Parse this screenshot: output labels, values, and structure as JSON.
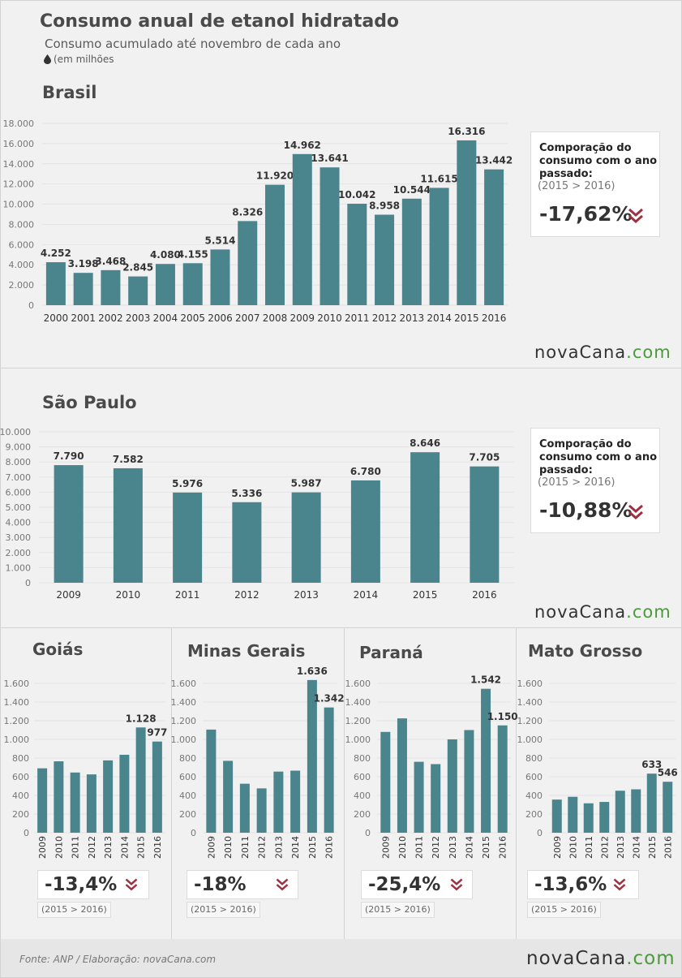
{
  "header": {
    "title": "Consumo anual de etanol hidratado",
    "subtitle": "Consumo acumulado até novembro de cada ano",
    "unit": "(em milhões"
  },
  "brand": {
    "logo_main": "novaCana",
    "logo_suffix": ".com",
    "accent": "#4b9a3c"
  },
  "colors": {
    "bar": "#4a848d",
    "grid": "#e4e4e4",
    "arrow": "#a03040"
  },
  "footer": {
    "source": "Fonte: ANP  / Elaboração: novaCana.com"
  },
  "comparison_title": "Comporação do consumo com o ano passado:",
  "brasil": {
    "name": "Brasil",
    "period": "(2015 > 2016)",
    "change": "-17,62%"
  },
  "sao_paulo": {
    "name": "São Paulo",
    "period": "(2015 > 2016)",
    "change": "-10,88%"
  },
  "goias": {
    "name": "Goiás",
    "period": "(2015 > 2016)",
    "change": "-13,4%"
  },
  "minas": {
    "name": "Minas Gerais",
    "period": "(2015 > 2016)",
    "change": "-18%"
  },
  "parana": {
    "name": "Paraná",
    "period": "(2015 > 2016)",
    "change": "-25,4%"
  },
  "mato_grosso": {
    "name": "Mato Grosso",
    "period": "(2015 > 2016)",
    "change": "-13,6%"
  },
  "chart_data": [
    {
      "id": "brasil",
      "type": "bar",
      "categories": [
        "2000",
        "2001",
        "2002",
        "2003",
        "2004",
        "2005",
        "2006",
        "2007",
        "2008",
        "2009",
        "2010",
        "2011",
        "2012",
        "2013",
        "2014",
        "2015",
        "2016"
      ],
      "values": [
        4252,
        3198,
        3468,
        2845,
        4080,
        4155,
        5514,
        8326,
        11920,
        14962,
        13641,
        10042,
        8958,
        10544,
        11615,
        16316,
        13442
      ],
      "labels": [
        "4.252",
        "3.198",
        "3.468",
        "2.845",
        "4.080",
        "4.155",
        "5.514",
        "8.326",
        "11.920",
        "14.962",
        "13.641",
        "10.042",
        "8.958",
        "10.544",
        "11.615",
        "16.316",
        "13.442"
      ],
      "ylim": [
        0,
        18000
      ],
      "yticks": [
        0,
        2000,
        4000,
        6000,
        8000,
        10000,
        12000,
        14000,
        16000,
        18000
      ],
      "ytick_labels": [
        "0",
        "2.000",
        "4.000",
        "6.000",
        "8.000",
        "10.000",
        "12.000",
        "14.000",
        "16.000",
        "18.000"
      ],
      "grid": true
    },
    {
      "id": "sao_paulo",
      "type": "bar",
      "categories": [
        "2009",
        "2010",
        "2011",
        "2012",
        "2013",
        "2014",
        "2015",
        "2016"
      ],
      "values": [
        7790,
        7582,
        5976,
        5336,
        5987,
        6780,
        8646,
        7705
      ],
      "labels": [
        "7.790",
        "7.582",
        "5.976",
        "5.336",
        "5.987",
        "6.780",
        "8.646",
        "7.705"
      ],
      "ylim": [
        0,
        10000
      ],
      "yticks": [
        0,
        1000,
        2000,
        3000,
        4000,
        5000,
        6000,
        7000,
        8000,
        9000,
        10000
      ],
      "ytick_labels": [
        "0",
        "1.000",
        "2.000",
        "3.000",
        "4.000",
        "5.000",
        "6.000",
        "7.000",
        "8.000",
        "9.000",
        "10.000"
      ],
      "grid": true
    },
    {
      "id": "goias",
      "type": "bar",
      "categories": [
        "2009",
        "2010",
        "2011",
        "2012",
        "2013",
        "2014",
        "2015",
        "2016"
      ],
      "values": [
        690,
        765,
        645,
        625,
        775,
        835,
        1128,
        977
      ],
      "labels": [
        "",
        "",
        "",
        "",
        "",
        "",
        "1.128",
        "977"
      ],
      "ylim": [
        0,
        1600
      ],
      "yticks": [
        0,
        200,
        400,
        600,
        800,
        1000,
        1200,
        1400,
        1600
      ],
      "ytick_labels": [
        "0",
        "200",
        "400",
        "600",
        "800",
        "1.000",
        "1.200",
        "1.400",
        "1.600"
      ],
      "grid": true
    },
    {
      "id": "minas",
      "type": "bar",
      "categories": [
        "2009",
        "2010",
        "2011",
        "2012",
        "2013",
        "2014",
        "2015",
        "2016"
      ],
      "values": [
        1105,
        770,
        525,
        475,
        655,
        665,
        1636,
        1342
      ],
      "labels": [
        "",
        "",
        "",
        "",
        "",
        "",
        "1.636",
        "1.342"
      ],
      "ylim": [
        0,
        1600
      ],
      "yticks": [
        0,
        200,
        400,
        600,
        800,
        1000,
        1200,
        1400,
        1600
      ],
      "ytick_labels": [
        "0",
        "200",
        "400",
        "600",
        "800",
        "1.000",
        "1.200",
        "1.400",
        "1.600"
      ],
      "grid": true
    },
    {
      "id": "parana",
      "type": "bar",
      "categories": [
        "2009",
        "2010",
        "2011",
        "2012",
        "2013",
        "2014",
        "2015",
        "2016"
      ],
      "values": [
        1080,
        1225,
        760,
        735,
        1000,
        1100,
        1542,
        1150
      ],
      "labels": [
        "",
        "",
        "",
        "",
        "",
        "",
        "1.542",
        "1.150"
      ],
      "ylim": [
        0,
        1600
      ],
      "yticks": [
        0,
        200,
        400,
        600,
        800,
        1000,
        1200,
        1400,
        1600
      ],
      "ytick_labels": [
        "0",
        "200",
        "400",
        "600",
        "800",
        "1.000",
        "1.200",
        "1.400",
        "1.600"
      ],
      "grid": true
    },
    {
      "id": "mato_grosso",
      "type": "bar",
      "categories": [
        "2009",
        "2010",
        "2011",
        "2012",
        "2013",
        "2014",
        "2015",
        "2016"
      ],
      "values": [
        355,
        385,
        315,
        330,
        450,
        465,
        633,
        546
      ],
      "labels": [
        "",
        "",
        "",
        "",
        "",
        "",
        "633",
        "546"
      ],
      "ylim": [
        0,
        1600
      ],
      "yticks": [
        0,
        200,
        400,
        600,
        800,
        1000,
        1200,
        1400,
        1600
      ],
      "ytick_labels": [
        "0",
        "200",
        "400",
        "600",
        "800",
        "1.000",
        "1.200",
        "1.400",
        "1.600"
      ],
      "grid": true
    }
  ]
}
